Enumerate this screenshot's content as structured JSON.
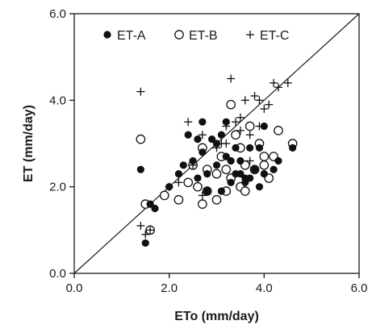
{
  "chart_data": {
    "type": "scatter",
    "xlabel": "ETo (mm/day)",
    "ylabel": "ET (mm/day)",
    "xlim": [
      0,
      6
    ],
    "ylim": [
      0,
      6
    ],
    "x_ticks": [
      "0.0",
      "2.0",
      "4.0",
      "6.0"
    ],
    "y_ticks": [
      "0.0",
      "2.0",
      "4.0",
      "6.0"
    ],
    "grid": false,
    "legend_position": "top",
    "reference_line": "1:1",
    "series": [
      {
        "name": "ET-A",
        "marker": "filled-circle",
        "color": "#111111",
        "points": [
          [
            1.4,
            2.4
          ],
          [
            1.5,
            0.7
          ],
          [
            1.6,
            1.6
          ],
          [
            1.7,
            1.5
          ],
          [
            2.0,
            2.0
          ],
          [
            2.2,
            2.3
          ],
          [
            2.3,
            2.5
          ],
          [
            2.4,
            3.2
          ],
          [
            2.5,
            2.6
          ],
          [
            2.6,
            3.1
          ],
          [
            2.6,
            2.2
          ],
          [
            2.7,
            3.5
          ],
          [
            2.7,
            2.8
          ],
          [
            2.8,
            2.3
          ],
          [
            2.9,
            3.1
          ],
          [
            3.0,
            2.5
          ],
          [
            3.0,
            3.0
          ],
          [
            3.1,
            3.2
          ],
          [
            3.2,
            2.7
          ],
          [
            3.2,
            3.5
          ],
          [
            3.3,
            2.1
          ],
          [
            3.3,
            2.6
          ],
          [
            3.4,
            2.9
          ],
          [
            3.5,
            2.3
          ],
          [
            3.5,
            2.6
          ],
          [
            3.6,
            2.1
          ],
          [
            3.6,
            2.2
          ],
          [
            3.7,
            2.9
          ],
          [
            3.8,
            2.4
          ],
          [
            3.9,
            2.0
          ],
          [
            3.9,
            2.9
          ],
          [
            4.0,
            2.3
          ],
          [
            4.0,
            3.4
          ],
          [
            4.2,
            2.4
          ],
          [
            4.3,
            2.6
          ],
          [
            4.6,
            2.9
          ],
          [
            2.8,
            1.9
          ],
          [
            3.1,
            1.9
          ],
          [
            3.4,
            2.3
          ],
          [
            3.7,
            2.2
          ]
        ]
      },
      {
        "name": "ET-B",
        "marker": "open-circle",
        "color": "#111111",
        "points": [
          [
            1.4,
            3.1
          ],
          [
            1.5,
            1.6
          ],
          [
            1.6,
            1.0
          ],
          [
            1.9,
            1.8
          ],
          [
            2.2,
            1.7
          ],
          [
            2.4,
            2.1
          ],
          [
            2.5,
            2.5
          ],
          [
            2.6,
            2.0
          ],
          [
            2.7,
            1.6
          ],
          [
            2.8,
            1.9
          ],
          [
            2.8,
            2.4
          ],
          [
            3.0,
            1.7
          ],
          [
            3.0,
            2.3
          ],
          [
            3.1,
            2.7
          ],
          [
            3.2,
            2.4
          ],
          [
            3.2,
            1.9
          ],
          [
            3.3,
            2.2
          ],
          [
            3.4,
            3.2
          ],
          [
            3.5,
            2.0
          ],
          [
            3.5,
            2.9
          ],
          [
            3.6,
            1.9
          ],
          [
            3.6,
            2.5
          ],
          [
            3.7,
            3.4
          ],
          [
            3.8,
            2.4
          ],
          [
            3.9,
            3.0
          ],
          [
            4.0,
            2.5
          ],
          [
            4.0,
            2.7
          ],
          [
            4.1,
            2.2
          ],
          [
            4.2,
            2.7
          ],
          [
            4.3,
            3.3
          ],
          [
            4.6,
            3.0
          ],
          [
            3.3,
            3.9
          ],
          [
            2.7,
            2.9
          ]
        ]
      },
      {
        "name": "ET-C",
        "marker": "plus",
        "color": "#111111",
        "points": [
          [
            1.4,
            4.2
          ],
          [
            1.4,
            1.1
          ],
          [
            1.5,
            0.9
          ],
          [
            1.6,
            1.0
          ],
          [
            2.0,
            2.0
          ],
          [
            2.2,
            2.1
          ],
          [
            2.4,
            3.5
          ],
          [
            2.5,
            2.5
          ],
          [
            2.7,
            1.8
          ],
          [
            2.7,
            3.2
          ],
          [
            3.0,
            2.9
          ],
          [
            3.1,
            3.0
          ],
          [
            3.2,
            3.4
          ],
          [
            3.3,
            4.5
          ],
          [
            3.4,
            3.5
          ],
          [
            3.5,
            3.3
          ],
          [
            3.5,
            3.6
          ],
          [
            3.6,
            4.0
          ],
          [
            3.7,
            3.2
          ],
          [
            3.8,
            4.1
          ],
          [
            3.9,
            3.4
          ],
          [
            3.9,
            4.0
          ],
          [
            4.0,
            3.8
          ],
          [
            4.1,
            3.9
          ],
          [
            4.2,
            4.4
          ],
          [
            4.3,
            4.3
          ],
          [
            4.5,
            4.4
          ],
          [
            3.7,
            2.6
          ],
          [
            3.2,
            3.0
          ]
        ]
      }
    ]
  }
}
